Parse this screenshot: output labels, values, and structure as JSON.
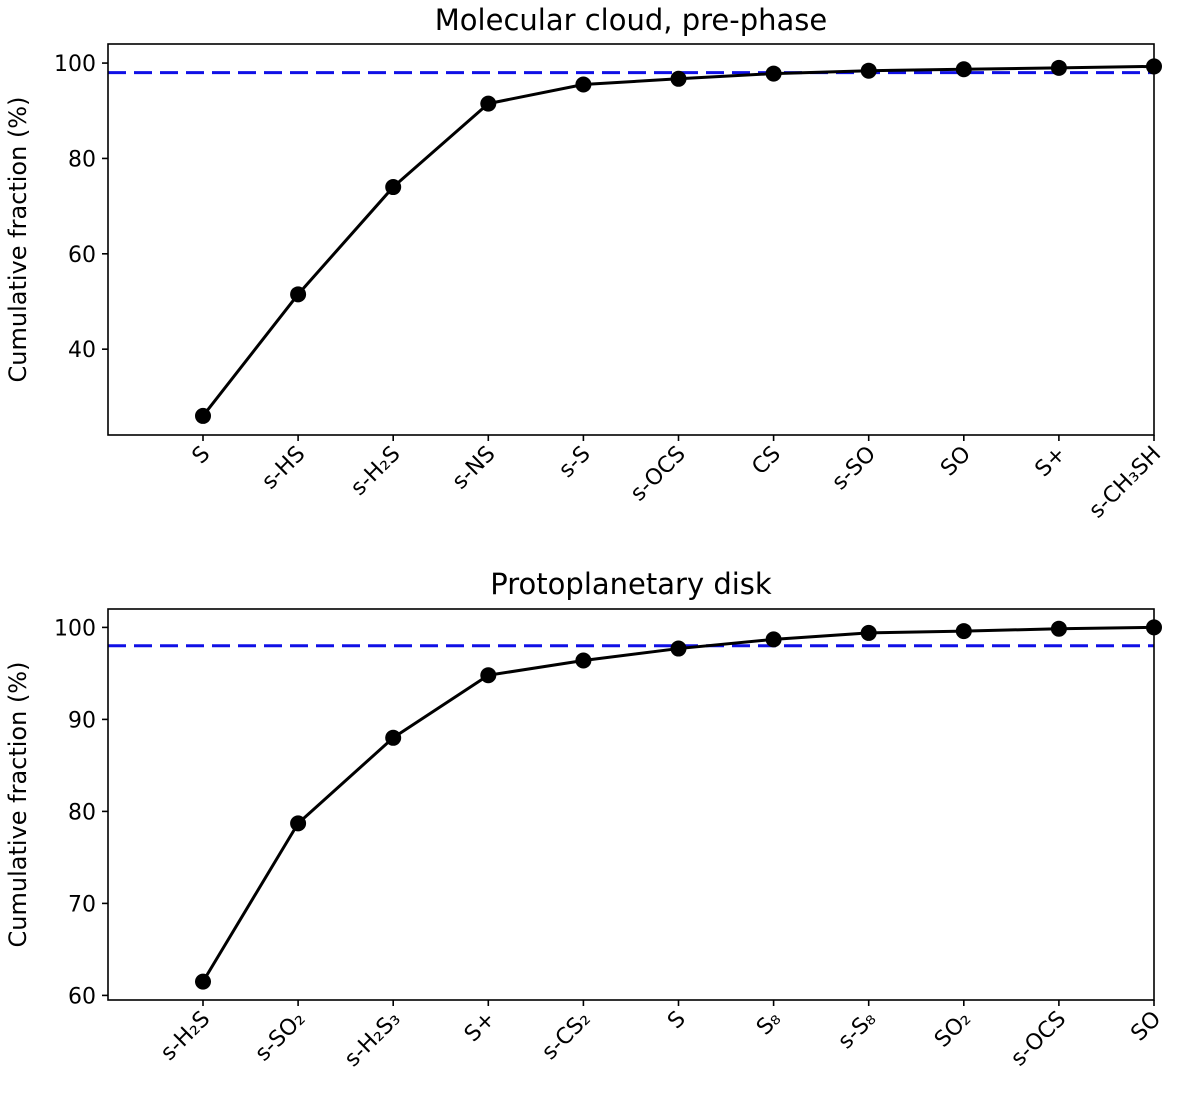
{
  "chart_data": [
    {
      "type": "line",
      "title": "Molecular cloud, pre-phase",
      "xlabel": "",
      "ylabel": "Cumulative fraction (%)",
      "categories": [
        "S",
        "s-HS",
        "s-H₂S",
        "s-NS",
        "s-S",
        "s-OCS",
        "CS",
        "s-SO",
        "SO",
        "S+",
        "s-CH₃SH"
      ],
      "values": [
        26,
        51.5,
        74,
        91.5,
        95.5,
        96.7,
        97.8,
        98.4,
        98.7,
        99.0,
        99.3
      ],
      "yticks": [
        40,
        60,
        80,
        100
      ],
      "ylim": [
        22,
        104
      ],
      "reference_line": {
        "y": 98,
        "color": "#1010e6",
        "style": "dashed"
      },
      "line_color": "#000000",
      "grid": false
    },
    {
      "type": "line",
      "title": "Protoplanetary disk",
      "xlabel": "",
      "ylabel": "Cumulative fraction (%)",
      "categories": [
        "s-H₂S",
        "s-SO₂",
        "s-H₂S₃",
        "S+",
        "s-CS₂",
        "S",
        "S₈",
        "s-S₈",
        "SO₂",
        "s-OCS",
        "SO"
      ],
      "values": [
        61.5,
        78.7,
        88,
        94.8,
        96.4,
        97.7,
        98.7,
        99.4,
        99.6,
        99.85,
        100
      ],
      "yticks": [
        60,
        70,
        80,
        90,
        100
      ],
      "ylim": [
        59.5,
        102
      ],
      "reference_line": {
        "y": 98,
        "color": "#1010e6",
        "style": "dashed"
      },
      "line_color": "#000000",
      "grid": false
    }
  ]
}
